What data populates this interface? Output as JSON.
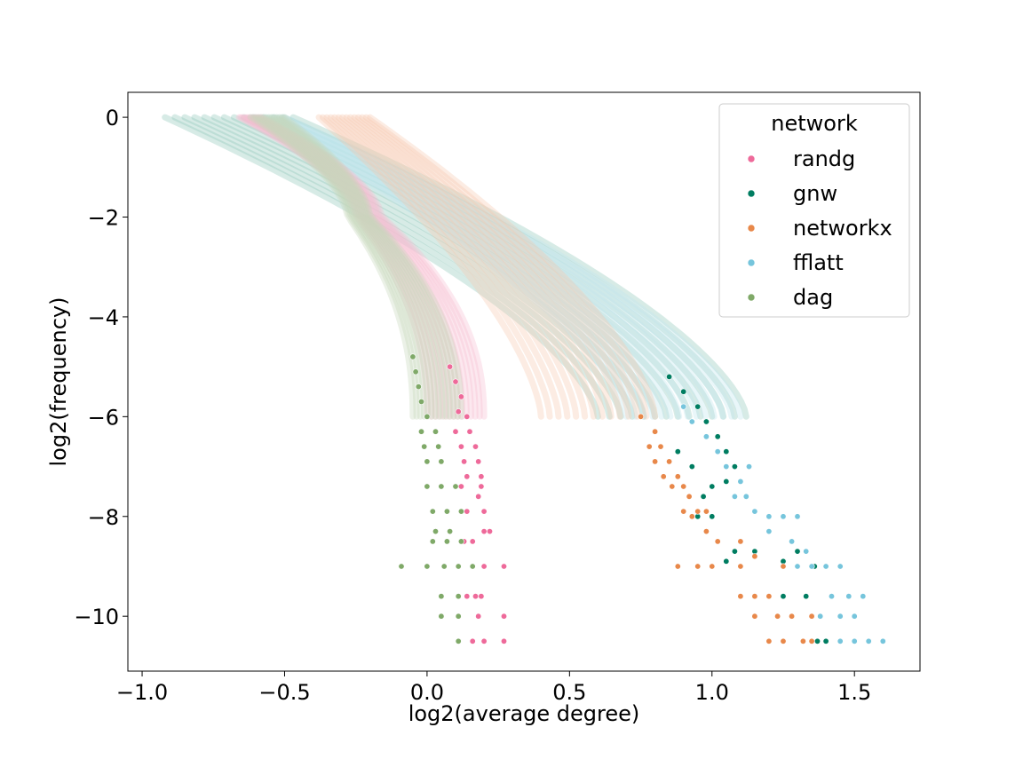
{
  "chart_data": {
    "type": "scatter",
    "xlabel": "log2(average degree)",
    "ylabel": "log2(frequency)",
    "xlim": [
      -1.05,
      1.73
    ],
    "ylim": [
      -11.1,
      0.5
    ],
    "xticks": [
      -1.0,
      -0.5,
      0.0,
      0.5,
      1.0,
      1.5
    ],
    "xtick_labels": [
      "−1.0",
      "−0.5",
      "0.0",
      "0.5",
      "1.0",
      "1.5"
    ],
    "yticks": [
      0,
      -2,
      -4,
      -6,
      -8,
      -10
    ],
    "ytick_labels": [
      "0",
      "−2",
      "−4",
      "−6",
      "−8",
      "−10"
    ],
    "grid": false,
    "legend": {
      "title": "network",
      "placement": "top-right"
    },
    "series": [
      {
        "name": "randg",
        "color": "#ee6a9a",
        "band_x0": [
          -0.66,
          -0.58
        ],
        "band_x_knee": [
          -0.25,
          -0.16
        ],
        "band_tail_x": [
          0.0,
          0.2
        ],
        "points": [
          [
            0.08,
            -5.0
          ],
          [
            0.1,
            -5.3
          ],
          [
            0.12,
            -5.6
          ],
          [
            0.11,
            -5.9
          ],
          [
            0.14,
            -6.0
          ],
          [
            0.15,
            -6.3
          ],
          [
            0.1,
            -6.3
          ],
          [
            0.17,
            -6.6
          ],
          [
            0.12,
            -6.6
          ],
          [
            0.18,
            -6.9
          ],
          [
            0.13,
            -6.9
          ],
          [
            0.19,
            -7.2
          ],
          [
            0.14,
            -7.2
          ],
          [
            0.19,
            -7.4
          ],
          [
            0.12,
            -7.4
          ],
          [
            0.18,
            -7.6
          ],
          [
            0.2,
            -7.9
          ],
          [
            0.14,
            -7.9
          ],
          [
            0.2,
            -8.3
          ],
          [
            0.16,
            -8.5
          ],
          [
            0.13,
            -8.5
          ],
          [
            0.22,
            -8.3
          ],
          [
            0.27,
            -9.0
          ],
          [
            0.2,
            -9.0
          ],
          [
            0.16,
            -9.0
          ],
          [
            0.19,
            -9.6
          ],
          [
            0.17,
            -9.6
          ],
          [
            0.14,
            -9.6
          ],
          [
            0.27,
            -10.0
          ],
          [
            0.18,
            -10.0
          ],
          [
            0.27,
            -10.5
          ],
          [
            0.2,
            -10.5
          ],
          [
            0.16,
            -10.5
          ]
        ]
      },
      {
        "name": "gnw",
        "color": "#007d61",
        "band_x0": [
          -0.92,
          -0.47
        ],
        "band_tail_x": [
          0.6,
          1.12
        ],
        "points": [
          [
            0.85,
            -5.2
          ],
          [
            0.9,
            -5.5
          ],
          [
            0.95,
            -5.8
          ],
          [
            0.98,
            -6.1
          ],
          [
            1.02,
            -6.4
          ],
          [
            1.05,
            -6.7
          ],
          [
            1.08,
            -7.0
          ],
          [
            1.1,
            -7.3
          ],
          [
            1.05,
            -7.3
          ],
          [
            1.12,
            -7.6
          ],
          [
            1.0,
            -7.4
          ],
          [
            1.0,
            -8.0
          ],
          [
            0.95,
            -8.0
          ],
          [
            1.08,
            -8.7
          ],
          [
            1.05,
            -8.9
          ],
          [
            1.25,
            -8.9
          ],
          [
            1.15,
            -8.7
          ],
          [
            1.36,
            -9.0
          ],
          [
            1.3,
            -8.7
          ],
          [
            1.25,
            -9.6
          ],
          [
            1.33,
            -9.6
          ],
          [
            1.28,
            -10.0
          ],
          [
            1.4,
            -10.5
          ],
          [
            1.37,
            -10.5
          ],
          [
            1.1,
            -9.0
          ],
          [
            0.97,
            -7.6
          ],
          [
            0.93,
            -7.0
          ],
          [
            0.88,
            -6.7
          ]
        ]
      },
      {
        "name": "networkx",
        "color": "#e8884a",
        "band_x0": [
          -0.38,
          -0.2
        ],
        "band_tail_x": [
          0.4,
          0.8
        ],
        "points": [
          [
            0.75,
            -6.0
          ],
          [
            0.8,
            -6.3
          ],
          [
            0.82,
            -6.6
          ],
          [
            0.78,
            -6.6
          ],
          [
            0.85,
            -6.9
          ],
          [
            0.8,
            -6.9
          ],
          [
            0.88,
            -7.2
          ],
          [
            0.83,
            -7.2
          ],
          [
            0.9,
            -7.4
          ],
          [
            0.86,
            -7.4
          ],
          [
            0.92,
            -7.6
          ],
          [
            0.95,
            -7.9
          ],
          [
            0.9,
            -7.9
          ],
          [
            0.98,
            -7.9
          ],
          [
            0.93,
            -8.0
          ],
          [
            0.98,
            -8.3
          ],
          [
            1.02,
            -8.5
          ],
          [
            1.1,
            -8.5
          ],
          [
            1.15,
            -8.8
          ],
          [
            1.1,
            -9.0
          ],
          [
            1.0,
            -9.0
          ],
          [
            0.95,
            -9.0
          ],
          [
            0.88,
            -9.0
          ],
          [
            1.1,
            -9.6
          ],
          [
            1.15,
            -9.6
          ],
          [
            1.2,
            -9.6
          ],
          [
            1.23,
            -10.0
          ],
          [
            1.15,
            -10.0
          ],
          [
            1.28,
            -10.0
          ],
          [
            1.35,
            -10.0
          ],
          [
            1.2,
            -10.5
          ],
          [
            1.25,
            -10.5
          ],
          [
            1.32,
            -10.5
          ],
          [
            1.35,
            -10.5
          ],
          [
            1.25,
            -9.0
          ]
        ]
      },
      {
        "name": "fflatt",
        "color": "#76c5dc",
        "band_x0": [
          -0.62,
          -0.5
        ],
        "band_tail_x": [
          0.7,
          1.1
        ],
        "points": [
          [
            0.9,
            -5.8
          ],
          [
            0.93,
            -6.1
          ],
          [
            0.98,
            -6.4
          ],
          [
            1.02,
            -6.7
          ],
          [
            1.05,
            -7.0
          ],
          [
            1.1,
            -7.3
          ],
          [
            1.12,
            -7.6
          ],
          [
            1.15,
            -7.9
          ],
          [
            1.2,
            -8.0
          ],
          [
            1.25,
            -8.0
          ],
          [
            1.3,
            -8.0
          ],
          [
            1.2,
            -8.3
          ],
          [
            1.28,
            -8.5
          ],
          [
            1.33,
            -8.7
          ],
          [
            1.3,
            -9.0
          ],
          [
            1.35,
            -9.0
          ],
          [
            1.4,
            -9.0
          ],
          [
            1.45,
            -9.0
          ],
          [
            1.42,
            -9.6
          ],
          [
            1.48,
            -9.6
          ],
          [
            1.53,
            -9.6
          ],
          [
            1.38,
            -10.0
          ],
          [
            1.45,
            -10.0
          ],
          [
            1.5,
            -10.0
          ],
          [
            1.45,
            -10.5
          ],
          [
            1.5,
            -10.5
          ],
          [
            1.55,
            -10.5
          ],
          [
            1.6,
            -10.5
          ],
          [
            1.13,
            -7.0
          ],
          [
            1.08,
            -7.6
          ]
        ]
      },
      {
        "name": "dag",
        "color": "#7fa968",
        "band_x0": [
          -0.62,
          -0.5
        ],
        "band_x_knee": [
          -0.28,
          -0.2
        ],
        "band_tail_x": [
          -0.05,
          0.12
        ],
        "points": [
          [
            -0.05,
            -4.8
          ],
          [
            -0.04,
            -5.1
          ],
          [
            -0.03,
            -5.4
          ],
          [
            -0.02,
            -5.7
          ],
          [
            0.0,
            -6.0
          ],
          [
            -0.02,
            -6.3
          ],
          [
            0.03,
            -6.3
          ],
          [
            -0.01,
            -6.6
          ],
          [
            0.04,
            -6.6
          ],
          [
            0.0,
            -6.9
          ],
          [
            0.05,
            -6.9
          ],
          [
            0.0,
            -7.4
          ],
          [
            0.05,
            -7.4
          ],
          [
            0.1,
            -7.4
          ],
          [
            0.02,
            -7.9
          ],
          [
            0.07,
            -7.9
          ],
          [
            0.12,
            -7.9
          ],
          [
            0.03,
            -8.3
          ],
          [
            0.08,
            -8.3
          ],
          [
            0.02,
            -8.5
          ],
          [
            0.07,
            -8.5
          ],
          [
            0.12,
            -8.5
          ],
          [
            0.0,
            -9.0
          ],
          [
            0.06,
            -9.0
          ],
          [
            0.11,
            -9.0
          ],
          [
            0.16,
            -9.0
          ],
          [
            -0.09,
            -9.0
          ],
          [
            0.11,
            -9.6
          ],
          [
            0.05,
            -9.6
          ],
          [
            0.11,
            -10.0
          ],
          [
            0.05,
            -10.0
          ],
          [
            0.11,
            -10.5
          ]
        ]
      }
    ]
  }
}
